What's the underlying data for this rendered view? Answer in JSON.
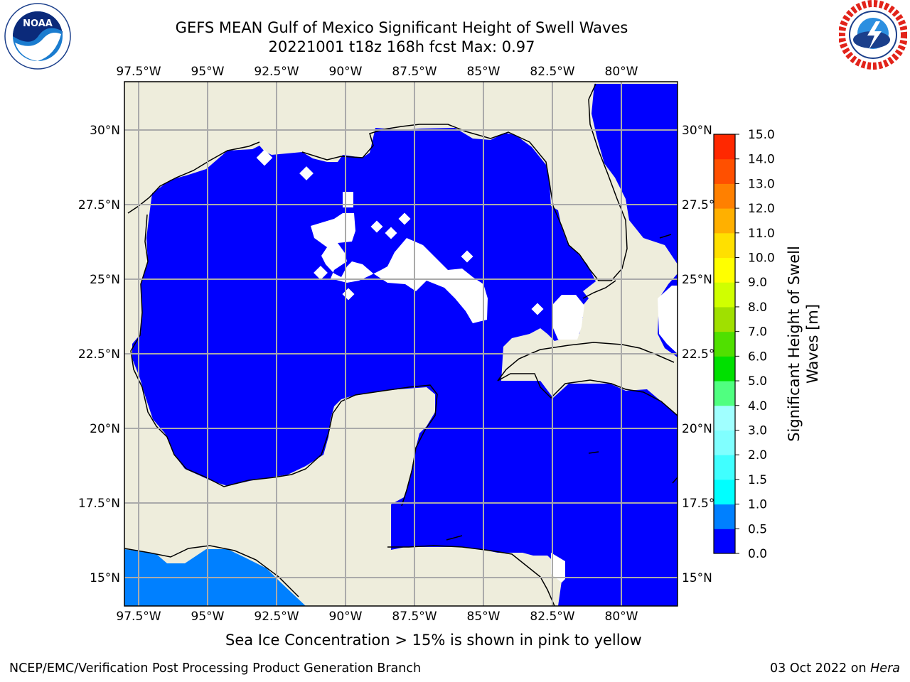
{
  "title_line1": "GEFS MEAN Gulf of Mexico Significant Height of Swell Waves",
  "title_line2": "20221001 t18z 168h fcst   Max: 0.97",
  "logos": {
    "left": "noaa-logo",
    "right": "national-weather-service-logo"
  },
  "map": {
    "projection": "PlateCarree",
    "lon_range": [
      -98.0,
      -78.0
    ],
    "lat_range": [
      14.0,
      31.8
    ],
    "gridlines": true,
    "lon_ticks": [
      "97.5°W",
      "95°W",
      "92.5°W",
      "90°W",
      "87.5°W",
      "85°W",
      "82.5°W",
      "80°W"
    ],
    "lon_tick_values": [
      -97.5,
      -95,
      -92.5,
      -90,
      -87.5,
      -85,
      -82.5,
      -80
    ],
    "lat_ticks": [
      "15°N",
      "17.5°N",
      "20°N",
      "22.5°N",
      "25°N",
      "27.5°N",
      "30°N"
    ],
    "lat_tick_values": [
      15,
      17.5,
      20,
      22.5,
      25,
      27.5,
      30
    ],
    "land_color": "#eeeddc",
    "field_color_main": "#0000ff",
    "field_color_pacific": "#0080ff",
    "missing_color": "#ffffff"
  },
  "colorbar": {
    "label": "Significant Height of Swell Waves [m]",
    "label_line1": "Significant Height of Swell",
    "label_line2": "Waves [m]",
    "min": 0.0,
    "max": 15.0,
    "tick_labels": [
      "0.0",
      "0.5",
      "1.0",
      "1.5",
      "2.0",
      "3.0",
      "4.0",
      "5.0",
      "6.0",
      "7.0",
      "8.0",
      "9.0",
      "10.0",
      "11.0",
      "12.0",
      "13.0",
      "14.0",
      "15.0"
    ],
    "colors": [
      "#0000ff",
      "#0080ff",
      "#00ffff",
      "#40ffff",
      "#80ffff",
      "#a0ffff",
      "#50ff80",
      "#00e000",
      "#50e000",
      "#a0e000",
      "#d0ff00",
      "#ffff00",
      "#ffe000",
      "#ffb000",
      "#ff8000",
      "#ff5000",
      "#ff2800",
      "#ff0000"
    ]
  },
  "ice_note": "Sea Ice Concentration > 15% is shown in pink to yellow",
  "footer": {
    "credit": "NCEP/EMC/Verification Post Processing Product Generation Branch",
    "date": "03 Oct 2022 on",
    "machine": "Hera"
  }
}
